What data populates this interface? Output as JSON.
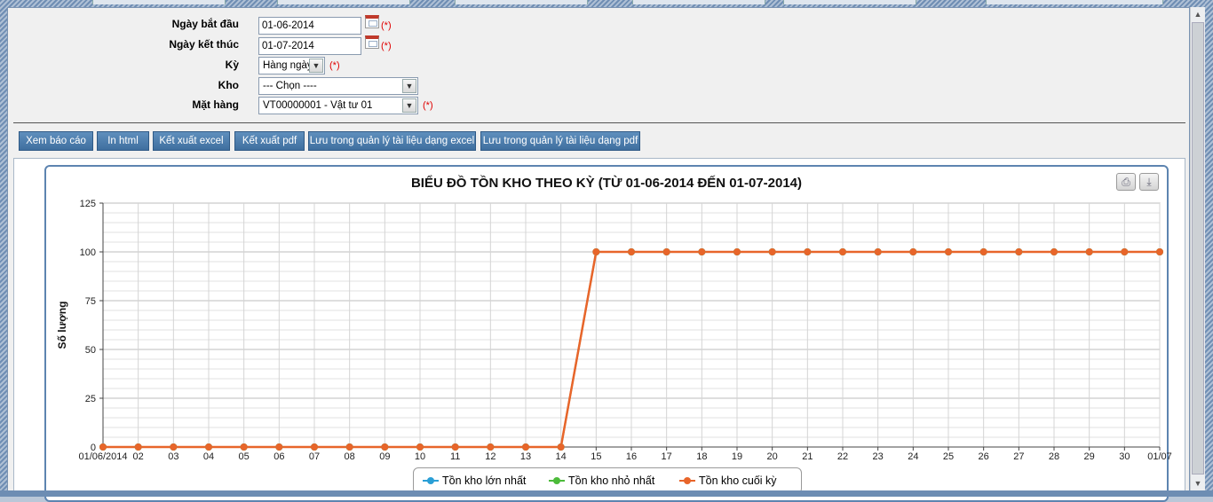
{
  "form": {
    "start_date": {
      "label": "Ngày bắt đầu",
      "value": "01-06-2014",
      "required": "(*)"
    },
    "end_date": {
      "label": "Ngày kết thúc",
      "value": "01-07-2014",
      "required": "(*)"
    },
    "period": {
      "label": "Kỳ",
      "value": "Hàng ngày",
      "required": "(*)"
    },
    "warehouse": {
      "label": "Kho",
      "value": "--- Chọn ----"
    },
    "item": {
      "label": "Mặt hàng",
      "value": "VT00000001 - Vật tư 01",
      "required": "(*)"
    }
  },
  "toolbar": {
    "view_report": "Xem báo cáo",
    "print_html": "In html",
    "export_excel": "Kết xuất excel",
    "export_pdf": "Kết xuất pdf",
    "save_excel": "Lưu trong quản lý tài liệu dạng excel",
    "save_pdf": "Lưu trong quản lý tài liệu dạng pdf"
  },
  "chart_data": {
    "type": "line",
    "title": "BIỂU ĐỒ TỒN KHO THEO KỲ (TỪ 01-06-2014 ĐẾN 01-07-2014)",
    "xlabel": "",
    "ylabel": "Số lượng",
    "ylim": [
      0,
      125
    ],
    "yticks": [
      0,
      25,
      50,
      75,
      100,
      125
    ],
    "grid": true,
    "legend_position": "bottom-center",
    "categories": [
      "01/06/2014",
      "02",
      "03",
      "04",
      "05",
      "06",
      "07",
      "08",
      "09",
      "10",
      "11",
      "12",
      "13",
      "14",
      "15",
      "16",
      "17",
      "18",
      "19",
      "20",
      "21",
      "22",
      "23",
      "24",
      "25",
      "26",
      "27",
      "28",
      "29",
      "30",
      "01/07"
    ],
    "series": [
      {
        "name": "Tồn kho lớn nhất",
        "color": "#2a9fd6",
        "values": [
          0,
          0,
          0,
          0,
          0,
          0,
          0,
          0,
          0,
          0,
          0,
          0,
          0,
          0,
          100,
          100,
          100,
          100,
          100,
          100,
          100,
          100,
          100,
          100,
          100,
          100,
          100,
          100,
          100,
          100,
          100
        ]
      },
      {
        "name": "Tồn kho nhỏ nhất",
        "color": "#4cbb3a",
        "values": [
          0,
          0,
          0,
          0,
          0,
          0,
          0,
          0,
          0,
          0,
          0,
          0,
          0,
          0,
          100,
          100,
          100,
          100,
          100,
          100,
          100,
          100,
          100,
          100,
          100,
          100,
          100,
          100,
          100,
          100,
          100
        ]
      },
      {
        "name": "Tồn kho cuối kỳ",
        "color": "#e8652a",
        "values": [
          0,
          0,
          0,
          0,
          0,
          0,
          0,
          0,
          0,
          0,
          0,
          0,
          0,
          0,
          100,
          100,
          100,
          100,
          100,
          100,
          100,
          100,
          100,
          100,
          100,
          100,
          100,
          100,
          100,
          100,
          100
        ]
      }
    ]
  }
}
